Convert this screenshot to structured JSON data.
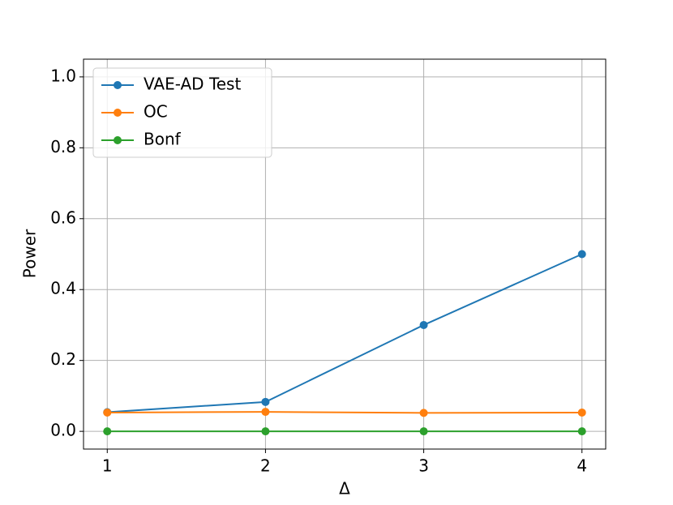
{
  "chart_data": {
    "type": "line",
    "x_label": "Δ",
    "y_label": "Power",
    "x": [
      1,
      2,
      3,
      4
    ],
    "series": [
      {
        "name": "VAE-AD Test",
        "color": "#1f77b4",
        "values": [
          0.054,
          0.083,
          0.3,
          0.5
        ]
      },
      {
        "name": "OC",
        "color": "#ff7f0e",
        "values": [
          0.053,
          0.055,
          0.052,
          0.053
        ]
      },
      {
        "name": "Bonf",
        "color": "#2ca02c",
        "values": [
          0,
          0,
          0,
          0
        ]
      }
    ],
    "xlim": [
      0.85,
      4.15
    ],
    "ylim": [
      -0.05,
      1.05
    ],
    "xticks": [
      1,
      2,
      3,
      4
    ],
    "yticks": [
      {
        "value": 0,
        "label": "0.0"
      },
      {
        "value": 0.2,
        "label": "0.2"
      },
      {
        "value": 0.4,
        "label": "0.4"
      },
      {
        "value": 0.6,
        "label": "0.6"
      },
      {
        "value": 0.8,
        "label": "0.8"
      },
      {
        "value": 1,
        "label": "1.0"
      }
    ],
    "grid": true,
    "legend": "upper left"
  }
}
